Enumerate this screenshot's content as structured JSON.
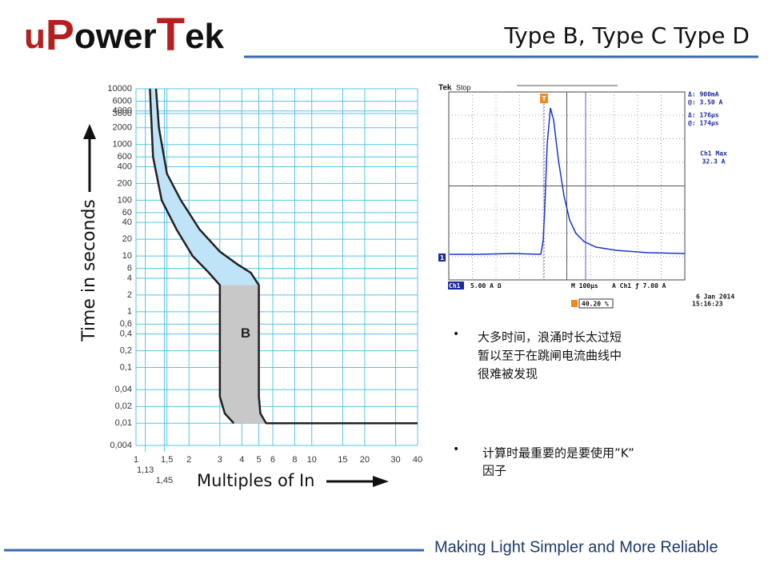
{
  "header": {
    "logo": [
      "u",
      "P",
      "ower",
      "T",
      "ek"
    ],
    "title": "Type B, Type C  Type D"
  },
  "chart_data": {
    "type": "line",
    "ylabel": "Time in seconds",
    "xlabel": "Multiples of In",
    "annotation": "B",
    "xscale": "log",
    "yscale": "log",
    "grid": true,
    "color": "#55c3e6",
    "xlim": [
      1,
      40
    ],
    "ylim": [
      0.004,
      10000
    ],
    "xticks": [
      1,
      {
        "value": 1.13,
        "label": "1,13"
      },
      {
        "value": 1.45,
        "label": "1,45"
      },
      {
        "value": 1.5,
        "label": "1,5"
      },
      2,
      3,
      4,
      5,
      6,
      8,
      10,
      15,
      20,
      30,
      40
    ],
    "yticks": [
      10000,
      6000,
      4000,
      3600,
      2000,
      1000,
      600,
      400,
      200,
      100,
      60,
      40,
      20,
      10,
      6,
      4,
      2,
      1,
      {
        "value": 0.6,
        "label": "0,6"
      },
      {
        "value": 0.4,
        "label": "0,4"
      },
      {
        "value": 0.2,
        "label": "0,2"
      },
      {
        "value": 0.1,
        "label": "0,1"
      },
      {
        "value": 0.04,
        "label": "0,04"
      },
      {
        "value": 0.02,
        "label": "0,02"
      },
      {
        "value": 0.01,
        "label": "0,01"
      },
      {
        "value": 0.004,
        "label": "0,004"
      }
    ],
    "series": [
      {
        "color": "#222222",
        "x": [
          1.2,
          1.25,
          1.4,
          1.7,
          2.1,
          2.6,
          3,
          3,
          3,
          3.2,
          3.6
        ],
        "values": [
          10000,
          600,
          100,
          30,
          10,
          5,
          3,
          1.5,
          0.03,
          0.015,
          0.01
        ]
      },
      {
        "color": "#222222",
        "x": [
          1.3,
          1.35,
          1.5,
          1.8,
          2.3,
          3,
          3.8,
          4.5,
          5,
          5,
          5.1,
          5.5,
          40
        ],
        "values": [
          10000,
          2000,
          300,
          100,
          30,
          12,
          7,
          5,
          3,
          0.03,
          0.015,
          0.01,
          0.01
        ]
      }
    ]
  },
  "scope": {
    "brand": "Tek",
    "state": "Stop",
    "trigger": "T",
    "readouts": [
      "Δ:   900mA",
      "@:   3.50 A",
      "Δ:   176µs",
      "@:   174µs"
    ],
    "max_label": "Ch1 Max",
    "max_value": "32.3 A",
    "channel_marker": "1",
    "ch": "Ch1",
    "scale": "5.00 A Ω",
    "timebase": "M 100µs",
    "trig": "A  Ch1  ƒ   7.80 A",
    "date": "6 Jan  2014",
    "time": "15:16:23",
    "position": "40.20 %"
  },
  "bullets": [
    {
      "lines": [
        "大多时间，浪涌时长太过短",
        "暂以至于在跳闸电流曲线中",
        "很难被发现"
      ]
    },
    {
      "lines": [
        "计算时最重要的是要使用”K”",
        "因子"
      ]
    }
  ],
  "footer": "Making Light Simpler and More Reliable"
}
